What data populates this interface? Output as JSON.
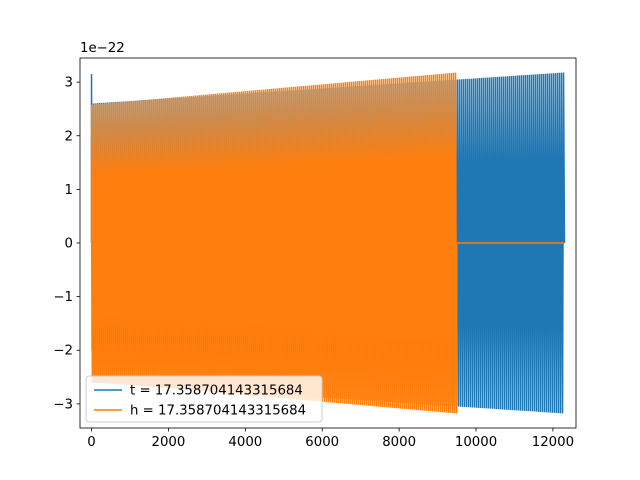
{
  "chart_data": {
    "type": "line",
    "title": "",
    "xlabel": "",
    "ylabel": "",
    "y_offset_label": "1e−22",
    "xlim": [
      -300,
      12600
    ],
    "ylim": [
      -3.45,
      3.45
    ],
    "y_scale_exponent": -22,
    "xticks": [
      0,
      2000,
      4000,
      6000,
      8000,
      10000,
      12000
    ],
    "xtick_labels": [
      "0",
      "2000",
      "4000",
      "6000",
      "8000",
      "10000",
      "12000"
    ],
    "yticks": [
      -3,
      -2,
      -1,
      0,
      1,
      2,
      3
    ],
    "ytick_labels": [
      "−3",
      "−2",
      "−1",
      "0",
      "1",
      "2",
      "3"
    ],
    "grid": false,
    "legend": {
      "placement": "lower-left"
    },
    "series": [
      {
        "name": "t = 17.358704143315684",
        "color": "#1f77b4",
        "kind": "oscillation",
        "x_start": 0,
        "x_end": 12300,
        "amplitude_start": 2.6,
        "amplitude_end": 3.18,
        "initial_spike": 3.15
      },
      {
        "name": "h = 17.358704143315684",
        "color": "#ff7f0e",
        "kind": "oscillation",
        "x_start": 0,
        "x_end": 9500,
        "amplitude_start": 2.58,
        "amplitude_end": 3.18,
        "flat_after": 0,
        "flat_until": 12300
      }
    ]
  }
}
